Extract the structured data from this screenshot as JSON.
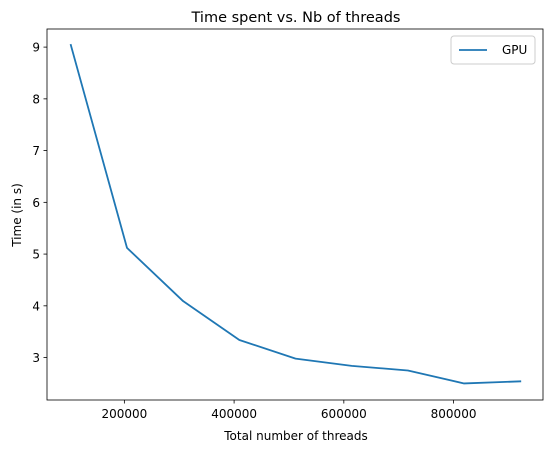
{
  "chart_data": {
    "type": "line",
    "title": "Time spent vs. Nb of threads",
    "xlabel": "Total number of threads",
    "ylabel": "Time (in s)",
    "xlim": [
      59000,
      963000
    ],
    "ylim": [
      2.18,
      9.35
    ],
    "xticks": [
      200000,
      400000,
      600000,
      800000
    ],
    "xtick_labels": [
      "200000",
      "400000",
      "600000",
      "800000"
    ],
    "yticks": [
      3,
      4,
      5,
      6,
      7,
      8,
      9
    ],
    "ytick_labels": [
      "3",
      "4",
      "5",
      "6",
      "7",
      "8",
      "9"
    ],
    "grid": false,
    "legend_position": "upper right",
    "series": [
      {
        "name": "GPU",
        "color": "#1f77b4",
        "x": [
          102400,
          204800,
          307200,
          409600,
          512000,
          614400,
          716800,
          819200,
          921600
        ],
        "y": [
          9.04,
          5.12,
          4.09,
          3.34,
          2.98,
          2.84,
          2.75,
          2.5,
          2.54
        ]
      }
    ]
  }
}
